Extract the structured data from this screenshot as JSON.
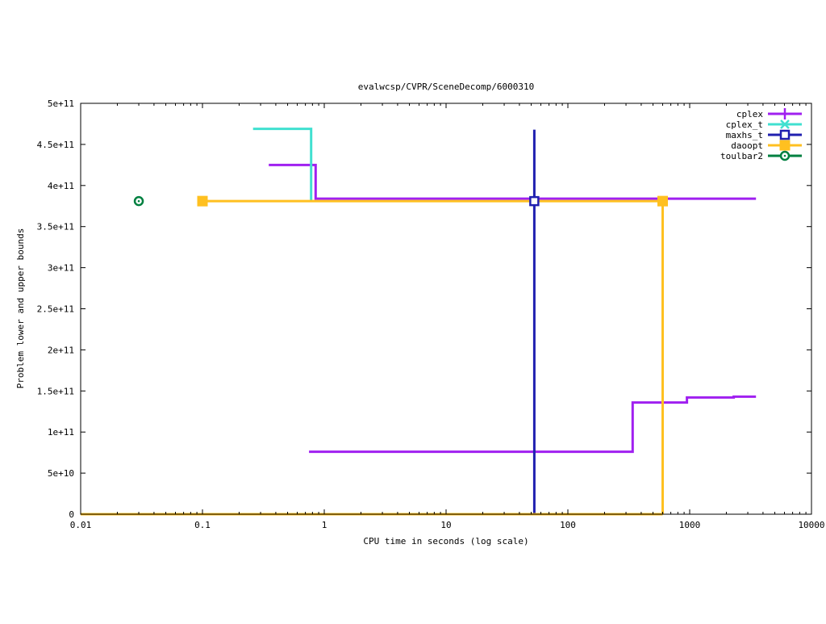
{
  "chart_data": {
    "type": "line",
    "title": "evalwcsp/CVPR/SceneDecomp/6000310",
    "xlabel": "CPU time in seconds (log scale)",
    "ylabel": "Problem lower and upper bounds",
    "xscale": "log",
    "xlim": [
      0.01,
      10000
    ],
    "ylim": [
      0,
      500000000000
    ],
    "x_ticks": [
      0.01,
      0.1,
      1,
      10,
      100,
      1000,
      10000
    ],
    "x_tick_labels": [
      "0.01",
      "0.1",
      "1",
      "10",
      "100",
      "1000",
      "10000"
    ],
    "y_ticks": [
      0,
      50000000000,
      100000000000,
      150000000000,
      200000000000,
      250000000000,
      300000000000,
      350000000000,
      400000000000,
      450000000000,
      500000000000
    ],
    "y_tick_labels": [
      "0",
      "5e+10",
      "1e+11",
      "1.5e+11",
      "2e+11",
      "2.5e+11",
      "3e+11",
      "3.5e+11",
      "4e+11",
      "4.5e+11",
      "5e+11"
    ],
    "grid": false,
    "legend_position": "top-right",
    "series": [
      {
        "name": "cplex",
        "color": "#a020f0",
        "marker": "plus",
        "step": true,
        "segments": [
          [
            [
              0.35,
              425000000000
            ],
            [
              0.85,
              425000000000
            ],
            [
              0.85,
              384000000000
            ],
            [
              3500,
              384000000000
            ]
          ],
          [
            [
              0.75,
              76000000000
            ],
            [
              340,
              76000000000
            ],
            [
              340,
              136000000000
            ],
            [
              950,
              136000000000
            ],
            [
              950,
              142000000000
            ],
            [
              2300,
              142000000000
            ],
            [
              2300,
              143000000000
            ],
            [
              3500,
              143000000000
            ]
          ]
        ]
      },
      {
        "name": "cplex_t",
        "color": "#40e0d0",
        "marker": "cross",
        "step": true,
        "segments": [
          [
            [
              0.26,
              469000000000
            ],
            [
              0.78,
              469000000000
            ],
            [
              0.78,
              381000000000
            ]
          ]
        ]
      },
      {
        "name": "maxhs_t",
        "color": "#2020b0",
        "marker": "square-open",
        "step": true,
        "marker_points": [
          [
            53,
            381000000000
          ]
        ],
        "segments": [
          [
            [
              53,
              468000000000
            ],
            [
              53,
              0
            ]
          ]
        ]
      },
      {
        "name": "daoopt",
        "color": "#ffc020",
        "marker": "square-filled",
        "step": true,
        "marker_points": [
          [
            0.1,
            381000000000
          ],
          [
            600,
            381000000000
          ]
        ],
        "segments": [
          [
            [
              0.1,
              381000000000
            ],
            [
              600,
              381000000000
            ],
            [
              600,
              0
            ]
          ],
          [
            [
              0.01,
              0
            ],
            [
              600,
              0
            ]
          ]
        ]
      },
      {
        "name": "toulbar2",
        "color": "#008040",
        "marker": "circle-open",
        "step": true,
        "marker_points": [
          [
            0.03,
            381000000000
          ]
        ],
        "segments": []
      }
    ]
  }
}
